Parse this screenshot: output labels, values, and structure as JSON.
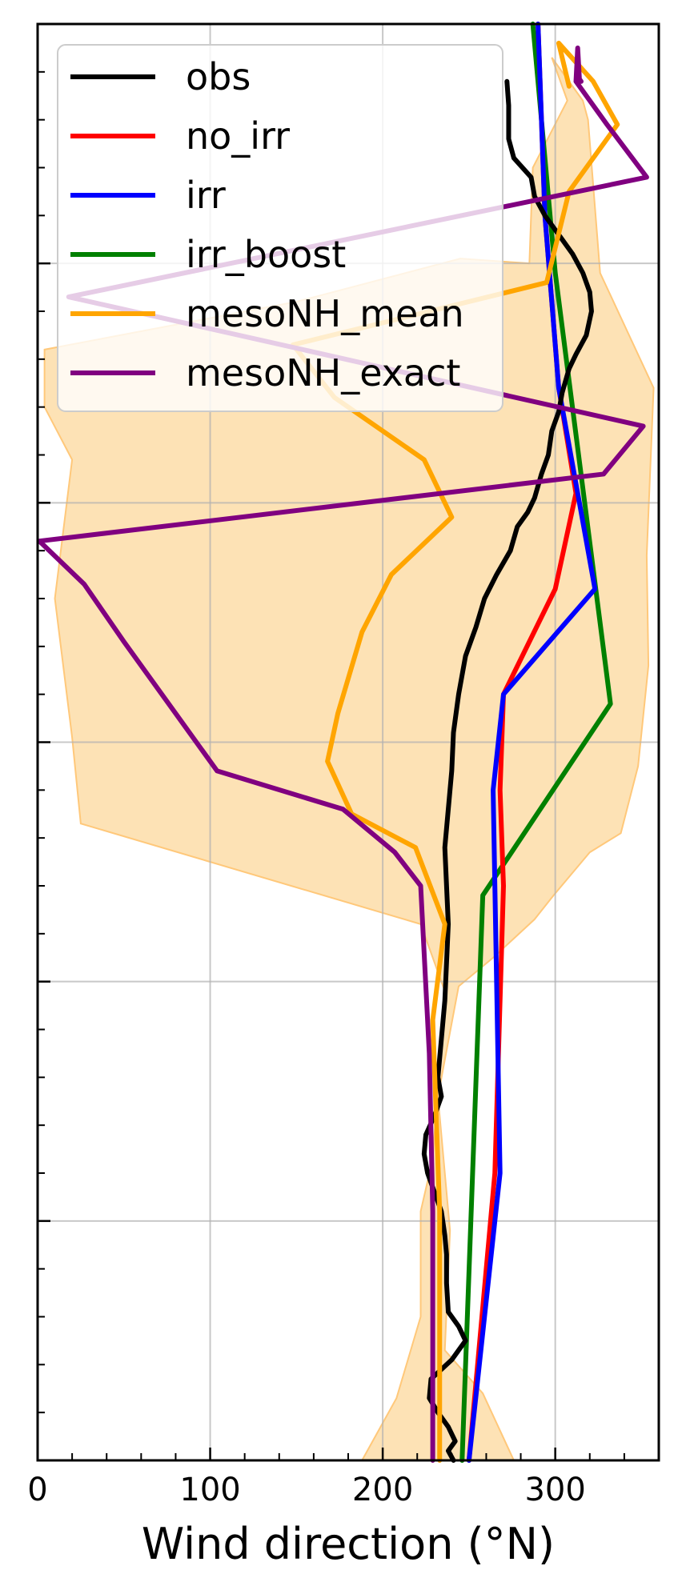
{
  "chart_data": {
    "type": "line",
    "title": "",
    "xlabel": "Wind direction (°N)",
    "ylabel": "",
    "xlim": [
      0,
      360
    ],
    "ylim": [
      0,
      3000
    ],
    "x_ticks": [
      0,
      100,
      200,
      300
    ],
    "x_tick_labels": [
      "0",
      "100",
      "200",
      "300"
    ],
    "x_minor_step": 20,
    "y_major_ticks": [
      500,
      1000,
      1500,
      2000,
      2500
    ],
    "y_minor_step": 100,
    "y_tick_labels_shown": false,
    "grid": true,
    "legend": {
      "location": "top-left",
      "entries": [
        "obs",
        "no_irr",
        "irr",
        "irr_boost",
        "mesoNH_mean",
        "mesoNH_exact"
      ]
    },
    "band": {
      "label": "",
      "color": "#fde2b5",
      "edge_color": "#ffc87a",
      "left": [
        [
          188,
          0
        ],
        [
          208,
          130
        ],
        [
          222,
          300
        ],
        [
          222,
          520
        ],
        [
          229,
          630
        ],
        [
          236,
          980
        ],
        [
          222,
          1120
        ],
        [
          25,
          1330
        ],
        [
          20,
          1510
        ],
        [
          10,
          1800
        ],
        [
          20,
          2090
        ],
        [
          4,
          2200
        ],
        [
          4,
          2320
        ],
        [
          150,
          2420
        ],
        [
          245,
          2510
        ],
        [
          285,
          2500
        ],
        [
          287,
          2700
        ],
        [
          307,
          2840
        ],
        [
          298,
          2930
        ]
      ],
      "right": [
        [
          276,
          0
        ],
        [
          258,
          140
        ],
        [
          236,
          230
        ],
        [
          239,
          480
        ],
        [
          232,
          760
        ],
        [
          244,
          990
        ],
        [
          264,
          1050
        ],
        [
          288,
          1130
        ],
        [
          299,
          1180
        ],
        [
          320,
          1270
        ],
        [
          338,
          1310
        ],
        [
          348,
          1450
        ],
        [
          354,
          1660
        ],
        [
          353,
          1890
        ],
        [
          357,
          2240
        ],
        [
          326,
          2480
        ],
        [
          319,
          2800
        ],
        [
          316,
          2840
        ],
        [
          298,
          2930
        ]
      ]
    },
    "series": [
      {
        "name": "obs",
        "color": "#000000",
        "x": [
          241,
          238,
          242,
          238,
          232,
          227,
          228,
          240,
          248,
          244,
          238,
          237,
          237,
          236,
          234,
          230,
          226,
          224,
          225,
          230,
          234,
          232,
          234,
          236,
          237,
          238,
          237,
          236,
          238,
          240,
          241,
          244,
          246,
          248,
          254,
          259,
          266,
          274,
          278,
          284,
          288,
          292,
          296,
          298,
          302,
          304,
          308,
          312,
          315,
          318,
          321,
          320,
          316,
          310,
          302,
          294,
          288,
          286,
          281,
          276,
          273,
          273,
          272
        ],
        "y": [
          0,
          20,
          40,
          70,
          100,
          130,
          170,
          210,
          250,
          280,
          310,
          370,
          430,
          470,
          520,
          560,
          600,
          640,
          680,
          720,
          760,
          800,
          880,
          960,
          1040,
          1120,
          1200,
          1280,
          1360,
          1440,
          1520,
          1600,
          1640,
          1680,
          1740,
          1800,
          1850,
          1900,
          1950,
          1980,
          2010,
          2060,
          2100,
          2150,
          2190,
          2230,
          2280,
          2310,
          2330,
          2350,
          2400,
          2440,
          2480,
          2520,
          2560,
          2600,
          2640,
          2680,
          2700,
          2720,
          2760,
          2830,
          2880
        ]
      },
      {
        "name": "no_irr",
        "color": "#ff0000",
        "x": [
          250,
          265,
          270,
          268,
          270,
          300,
          312,
          302,
          294,
          290
        ],
        "y": [
          0,
          600,
          1200,
          1400,
          1600,
          1820,
          2020,
          2240,
          2600,
          3000
        ]
      },
      {
        "name": "irr",
        "color": "#0000ff",
        "x": [
          250,
          268,
          264,
          270,
          323,
          302,
          294,
          290
        ],
        "y": [
          0,
          600,
          1400,
          1600,
          1820,
          2240,
          2600,
          3000
        ]
      },
      {
        "name": "irr_boost",
        "color": "#008000",
        "x": [
          246,
          258,
          332,
          300,
          287
        ],
        "y": [
          0,
          1180,
          1580,
          2480,
          3000
        ]
      },
      {
        "name": "mesoNH_mean",
        "color": "#ffa500",
        "x": [
          233,
          233,
          233,
          229,
          236,
          219,
          182,
          168,
          174,
          188,
          205,
          240,
          224,
          172,
          148,
          295,
          308,
          336,
          322,
          302,
          308
        ],
        "y": [
          0,
          240,
          520,
          920,
          1120,
          1280,
          1350,
          1460,
          1560,
          1730,
          1850,
          1970,
          2090,
          2220,
          2330,
          2460,
          2650,
          2790,
          2880,
          2960,
          2870
        ]
      },
      {
        "name": "mesoNH_exact",
        "color": "#800080",
        "x": [
          229,
          229,
          229,
          227,
          222,
          207,
          177,
          104,
          64,
          50,
          27,
          1,
          328,
          351,
          18,
          353,
          330,
          312,
          313,
          314,
          315
        ],
        "y": [
          0,
          260,
          520,
          850,
          1200,
          1270,
          1360,
          1440,
          1640,
          1710,
          1830,
          1920,
          2060,
          2160,
          2430,
          2680,
          2790,
          2880,
          2950,
          2885,
          2880
        ]
      }
    ]
  }
}
